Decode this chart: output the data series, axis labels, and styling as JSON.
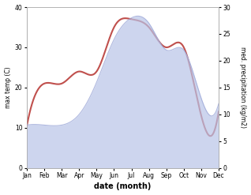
{
  "months": [
    "Jan",
    "Feb",
    "Mar",
    "Apr",
    "May",
    "Jun",
    "Jul",
    "Aug",
    "Sep",
    "Oct",
    "Nov",
    "Dec"
  ],
  "temp": [
    10.5,
    21,
    21,
    24,
    24,
    35,
    37,
    35,
    30,
    30,
    13,
    14
  ],
  "precip": [
    8,
    8,
    8,
    10,
    16,
    24,
    28,
    27,
    22,
    22,
    13,
    12
  ],
  "temp_color": "#c0504d",
  "precip_fill_color": "#b8c4e8",
  "precip_line_color": "#9da8d8",
  "xlabel": "date (month)",
  "ylabel_left": "max temp (C)",
  "ylabel_right": "med. precipitation (kg/m2)",
  "ylim_left": [
    0,
    40
  ],
  "ylim_right": [
    0,
    30
  ],
  "yticks_left": [
    0,
    10,
    20,
    30,
    40
  ],
  "yticks_right": [
    0,
    5,
    10,
    15,
    20,
    25,
    30
  ]
}
